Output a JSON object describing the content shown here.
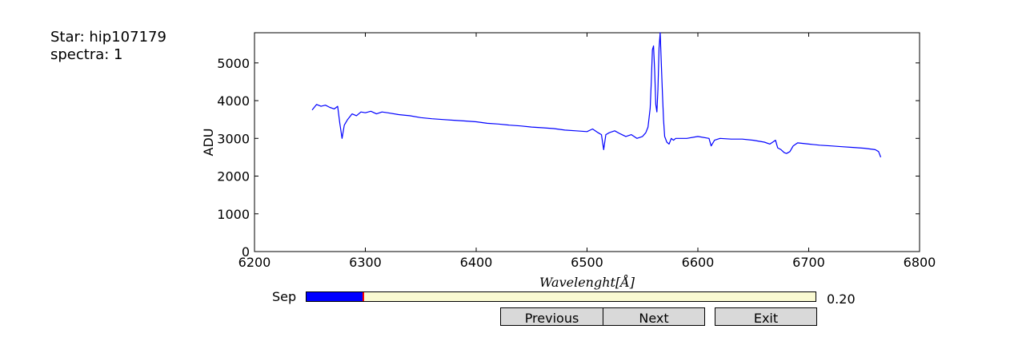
{
  "info": {
    "star_line": "Star: hip107179",
    "spectra_line": "spectra: 1"
  },
  "controls": {
    "slider_label": "Sep",
    "slider_value_text": "0.20",
    "slider_fraction": 0.112,
    "buttons": {
      "previous": "Previous",
      "next": "Next",
      "exit": "Exit"
    }
  },
  "colors": {
    "line": "#0000ff",
    "slider_fill": "#0000ff",
    "slider_bg": "#fafad2",
    "slider_handle": "#ff0000",
    "button_bg": "#d9d9d9"
  },
  "chart_data": {
    "type": "line",
    "title": "",
    "xlabel": "Wavelenght[Å]",
    "ylabel": "ADU",
    "xlim": [
      6200,
      6800
    ],
    "ylim": [
      0,
      5800
    ],
    "xticks": [
      6200,
      6300,
      6400,
      6500,
      6600,
      6700,
      6800
    ],
    "yticks": [
      0,
      1000,
      2000,
      3000,
      4000,
      5000
    ],
    "grid": false,
    "legend": "none",
    "series": [
      {
        "x": [
          6252,
          6256,
          6260,
          6264,
          6268,
          6272,
          6275,
          6277,
          6279,
          6281,
          6284,
          6288,
          6292,
          6296,
          6300,
          6305,
          6310,
          6315,
          6320,
          6330,
          6340,
          6350,
          6360,
          6370,
          6380,
          6390,
          6400,
          6410,
          6420,
          6430,
          6440,
          6450,
          6460,
          6470,
          6480,
          6490,
          6500,
          6505,
          6510,
          6513,
          6515,
          6517,
          6520,
          6525,
          6530,
          6535,
          6540,
          6545,
          6550,
          6553,
          6555,
          6557,
          6558,
          6559,
          6560,
          6561,
          6562,
          6563,
          6564,
          6565,
          6566,
          6567,
          6568,
          6569,
          6570,
          6572,
          6574,
          6576,
          6578,
          6580,
          6590,
          6600,
          6610,
          6612,
          6615,
          6620,
          6630,
          6640,
          6650,
          6660,
          6665,
          6670,
          6672,
          6675,
          6678,
          6680,
          6683,
          6686,
          6690,
          6700,
          6710,
          6720,
          6730,
          6740,
          6750,
          6760,
          6763,
          6765
        ],
        "y": [
          3750,
          3900,
          3850,
          3880,
          3820,
          3780,
          3850,
          3400,
          3000,
          3350,
          3500,
          3650,
          3600,
          3700,
          3680,
          3720,
          3650,
          3700,
          3680,
          3630,
          3600,
          3550,
          3520,
          3500,
          3480,
          3460,
          3440,
          3400,
          3380,
          3350,
          3330,
          3300,
          3280,
          3260,
          3220,
          3200,
          3180,
          3250,
          3150,
          3100,
          2700,
          3100,
          3150,
          3200,
          3120,
          3050,
          3100,
          3000,
          3050,
          3150,
          3300,
          3800,
          4500,
          5350,
          5450,
          4800,
          3900,
          3700,
          4300,
          5400,
          5800,
          5000,
          4200,
          3500,
          3050,
          2900,
          2850,
          3000,
          2950,
          3000,
          3000,
          3050,
          3000,
          2800,
          2950,
          3000,
          2980,
          2980,
          2950,
          2900,
          2850,
          2950,
          2750,
          2700,
          2620,
          2600,
          2650,
          2800,
          2880,
          2850,
          2820,
          2800,
          2780,
          2760,
          2740,
          2700,
          2650,
          2500
        ]
      }
    ]
  }
}
